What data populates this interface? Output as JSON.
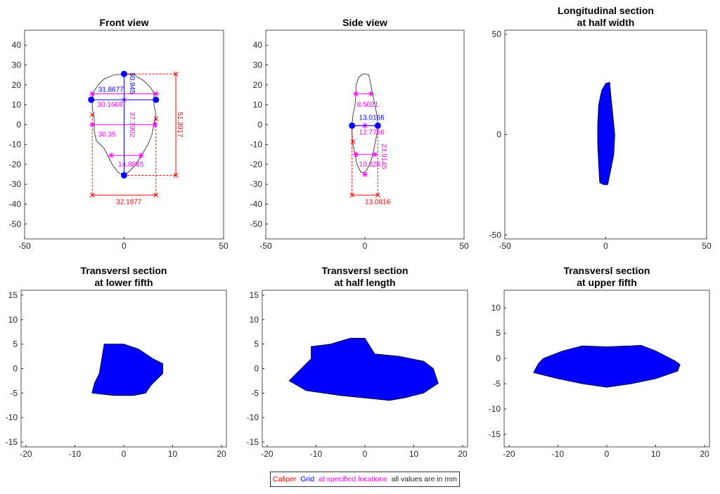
{
  "legend": {
    "caliper": "Caliper",
    "grid": "Grid",
    "specified": "at specified locations",
    "note": "all values are in mm"
  },
  "colors": {
    "caliper": "#ff0000",
    "grid": "#0000ff",
    "specified": "#ff00ff",
    "fill": "#0000ff",
    "outline": "#000000"
  },
  "chart_data": [
    {
      "type": "diagram",
      "title": [
        "Front view"
      ],
      "xlim": [
        -50,
        50
      ],
      "ylim": [
        -57.5,
        47.5
      ],
      "xticks": [
        -50,
        0,
        50
      ],
      "yticks": [
        -50,
        -40,
        -30,
        -20,
        -10,
        0,
        10,
        20,
        30,
        40
      ],
      "outline": [
        [
          0,
          25.5
        ],
        [
          5,
          25
        ],
        [
          10,
          22
        ],
        [
          13,
          19
        ],
        [
          15,
          16
        ],
        [
          15,
          10
        ],
        [
          16,
          5
        ],
        [
          15,
          0
        ],
        [
          14,
          -5
        ],
        [
          12,
          -10
        ],
        [
          9,
          -15
        ],
        [
          6,
          -20
        ],
        [
          2,
          -24
        ],
        [
          0,
          -25.5
        ],
        [
          -3,
          -24
        ],
        [
          -6,
          -20
        ],
        [
          -8,
          -16
        ],
        [
          -10,
          -12
        ],
        [
          -14,
          -8
        ],
        [
          -15,
          -3
        ],
        [
          -15,
          3
        ],
        [
          -16,
          8
        ],
        [
          -16,
          13
        ],
        [
          -15,
          17
        ],
        [
          -13,
          20
        ],
        [
          -10,
          23
        ],
        [
          -5,
          25
        ]
      ],
      "labels": [
        {
          "text": "31.8677",
          "color": "grid",
          "x": -13,
          "y": 16.5
        },
        {
          "text": "30.1668",
          "color": "specified",
          "x": -12,
          "y": 9
        },
        {
          "text": "50.945",
          "color": "grid",
          "x": 1.5,
          "y": 18,
          "rot": true
        },
        {
          "text": "37.7902",
          "color": "specified",
          "x": 1.5,
          "y": 0,
          "rot": true
        },
        {
          "text": "30.35",
          "color": "specified",
          "x": -13,
          "y": -6
        },
        {
          "text": "14.8885",
          "color": "specified",
          "x": -3,
          "y": -21
        },
        {
          "text": "51.3917",
          "color": "caliper",
          "x": 27,
          "y": 0,
          "rot": true
        },
        {
          "text": "32.1877",
          "color": "caliper",
          "x": -4,
          "y": -40
        }
      ]
    },
    {
      "type": "diagram",
      "title": [
        "Side view"
      ],
      "xlim": [
        -50,
        50
      ],
      "ylim": [
        -57.5,
        47.5
      ],
      "xticks": [
        -50,
        0,
        50
      ],
      "yticks": [
        -50,
        -40,
        -30,
        -20,
        -10,
        0,
        10,
        20,
        30,
        40
      ],
      "outline": [
        [
          0,
          25.5
        ],
        [
          2,
          25
        ],
        [
          3,
          20
        ],
        [
          4,
          15
        ],
        [
          5,
          10
        ],
        [
          6,
          5
        ],
        [
          6.5,
          0
        ],
        [
          6,
          -5
        ],
        [
          5,
          -10
        ],
        [
          4,
          -15
        ],
        [
          2.5,
          -20
        ],
        [
          0,
          -24
        ],
        [
          -2,
          -24
        ],
        [
          -4,
          -20
        ],
        [
          -5,
          -15
        ],
        [
          -6,
          -10
        ],
        [
          -6.5,
          -5
        ],
        [
          -6.5,
          0
        ],
        [
          -6,
          5
        ],
        [
          -5,
          10
        ],
        [
          -4.5,
          15
        ],
        [
          -4.5,
          20
        ],
        [
          -3,
          24
        ],
        [
          -1,
          25.5
        ]
      ],
      "labels": [
        {
          "text": "8.5021",
          "color": "specified",
          "x": -4,
          "y": 9
        },
        {
          "text": "13.0166",
          "color": "grid",
          "x": -3,
          "y": 2.5
        },
        {
          "text": "12.7756",
          "color": "specified",
          "x": -3,
          "y": -5
        },
        {
          "text": "23.9145",
          "color": "specified",
          "x": 1.5,
          "y": -16,
          "rot": true
        },
        {
          "text": "10.628",
          "color": "specified",
          "x": -3,
          "y": -21
        },
        {
          "text": "13.0816",
          "color": "caliper",
          "x": 0,
          "y": -40
        }
      ]
    },
    {
      "type": "area",
      "title": [
        "Longitudinal section",
        "at half width"
      ],
      "xlim": [
        -50,
        50
      ],
      "ylim": [
        -52,
        52
      ],
      "xticks": [
        -50,
        0,
        50
      ],
      "yticks": [
        -50,
        0,
        50
      ],
      "shape": [
        [
          0,
          25.5
        ],
        [
          2,
          26
        ],
        [
          2.5,
          20
        ],
        [
          3.5,
          10
        ],
        [
          4.5,
          0
        ],
        [
          4,
          -10
        ],
        [
          2,
          -20
        ],
        [
          1,
          -25
        ],
        [
          -1,
          -25
        ],
        [
          -3,
          -24
        ],
        [
          -3.5,
          -15
        ],
        [
          -4,
          -5
        ],
        [
          -4,
          5
        ],
        [
          -3.5,
          15
        ],
        [
          -2,
          22
        ]
      ]
    },
    {
      "type": "area",
      "title": [
        "Transversl section",
        "at lower fifth"
      ],
      "xlim": [
        -21,
        21
      ],
      "ylim": [
        -16,
        16
      ],
      "xticks": [
        -20,
        -10,
        0,
        10,
        20
      ],
      "yticks": [
        -15,
        -10,
        -5,
        0,
        5,
        10,
        15
      ],
      "shape": [
        [
          -4,
          5
        ],
        [
          0,
          5
        ],
        [
          3,
          4
        ],
        [
          6,
          2
        ],
        [
          8,
          1
        ],
        [
          8,
          -1
        ],
        [
          7,
          -2
        ],
        [
          5.5,
          -3.5
        ],
        [
          4.5,
          -5
        ],
        [
          2,
          -5.5
        ],
        [
          -2,
          -5.5
        ],
        [
          -6.5,
          -5
        ],
        [
          -6,
          -3
        ],
        [
          -5,
          -1
        ],
        [
          -4.5,
          2
        ]
      ]
    },
    {
      "type": "area",
      "title": [
        "Transversl section",
        "at half length"
      ],
      "xlim": [
        -21,
        21
      ],
      "ylim": [
        -16,
        16
      ],
      "xticks": [
        -20,
        -10,
        0,
        10,
        20
      ],
      "yticks": [
        -15,
        -10,
        -5,
        0,
        5,
        10,
        15
      ],
      "shape": [
        [
          -11,
          4.5
        ],
        [
          -7,
          5
        ],
        [
          -3,
          6.2
        ],
        [
          0,
          6.2
        ],
        [
          2,
          3
        ],
        [
          7,
          2.5
        ],
        [
          12,
          1.5
        ],
        [
          14,
          0
        ],
        [
          15,
          -3
        ],
        [
          12,
          -5
        ],
        [
          8,
          -6
        ],
        [
          5,
          -6.5
        ],
        [
          0,
          -6
        ],
        [
          -5,
          -5.5
        ],
        [
          -12,
          -4.5
        ],
        [
          -15.5,
          -2.5
        ],
        [
          -14,
          -1
        ],
        [
          -11,
          2
        ]
      ]
    },
    {
      "type": "area",
      "title": [
        "Transversl section",
        "at upper fifth"
      ],
      "xlim": [
        -21,
        21
      ],
      "ylim": [
        -17.5,
        13.5
      ],
      "xticks": [
        -20,
        -10,
        0,
        10,
        20
      ],
      "yticks": [
        -15,
        -10,
        -5,
        0,
        5,
        10
      ],
      "shape": [
        [
          -13,
          0
        ],
        [
          -9,
          1.5
        ],
        [
          -5,
          2.5
        ],
        [
          0,
          2.3
        ],
        [
          5,
          2.5
        ],
        [
          7,
          2.6
        ],
        [
          10,
          1.5
        ],
        [
          14,
          -0.5
        ],
        [
          15,
          -1.2
        ],
        [
          14.5,
          -2.5
        ],
        [
          10,
          -4
        ],
        [
          5,
          -5
        ],
        [
          0,
          -5.7
        ],
        [
          -5,
          -5
        ],
        [
          -10,
          -4
        ],
        [
          -15,
          -2.8
        ],
        [
          -14,
          -1
        ]
      ]
    }
  ]
}
